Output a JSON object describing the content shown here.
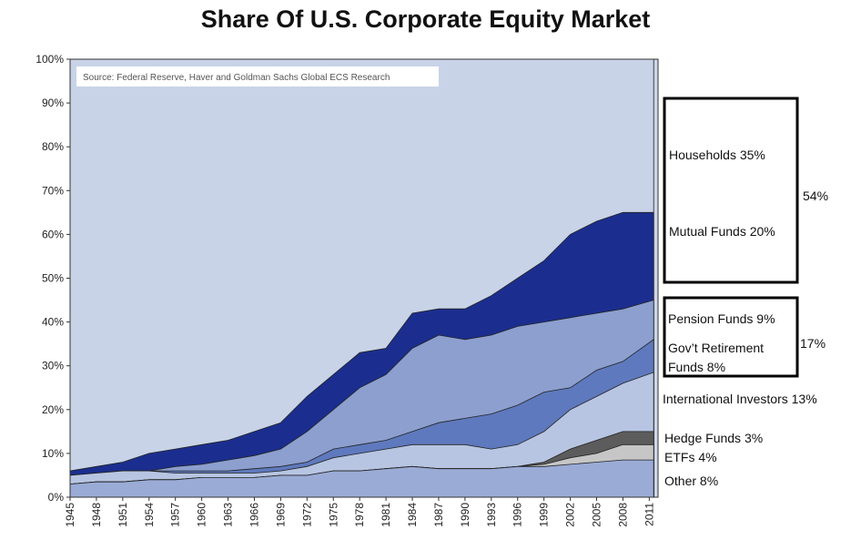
{
  "title": "Share Of U.S. Corporate Equity Market",
  "source_note": "Source: Federal Reserve, Haver and Goldman Sachs Global ECS Research",
  "colors": {
    "background_area": "#cdd7e8",
    "households": "#c8d3e7",
    "mutual_funds": "#1b2e8f",
    "pension_funds": "#8c9fcf",
    "govt_retirement": "#5e79bd",
    "international": "#b7c5e2",
    "hedge_funds": "#5c5c5c",
    "etfs": "#c6c6c6",
    "other": "#9aabd6",
    "outline": "#222222"
  },
  "legend": {
    "group1_total": "54%",
    "group2_total": "17%",
    "households": "Households 35%",
    "mutual_funds": "Mutual Funds 20%",
    "pension_funds": "Pension Funds 9%",
    "govt_retirement_1": "Gov’t Retirement",
    "govt_retirement_2": "Funds 8%",
    "international": "International Investors 13%",
    "hedge_funds": "Hedge Funds 3%",
    "etfs": "ETFs 4%",
    "other": "Other 8%"
  },
  "chart_data": {
    "type": "area",
    "title": "Share Of U.S. Corporate Equity Market",
    "xlabel": "",
    "ylabel": "",
    "ylim": [
      0,
      100
    ],
    "xlim": [
      1945,
      2012
    ],
    "y_ticks": [
      "0%",
      "10%",
      "20%",
      "30%",
      "40%",
      "50%",
      "60%",
      "70%",
      "80%",
      "90%",
      "100%"
    ],
    "x_ticks": [
      "1945",
      "1948",
      "1951",
      "1954",
      "1957",
      "1960",
      "1963",
      "1966",
      "1969",
      "1972",
      "1975",
      "1978",
      "1981",
      "1984",
      "1987",
      "1990",
      "1993",
      "1996",
      "1999",
      "2002",
      "2005",
      "2008",
      "2011"
    ],
    "x": [
      1945,
      1948,
      1951,
      1954,
      1957,
      1960,
      1963,
      1966,
      1969,
      1972,
      1975,
      1978,
      1981,
      1984,
      1987,
      1990,
      1993,
      1996,
      1999,
      2002,
      2005,
      2008,
      2011.5
    ],
    "cumulative_top_boundaries": [
      {
        "name": "Other",
        "values": [
          3,
          3.5,
          3.5,
          4,
          4,
          4.5,
          4.5,
          4.5,
          5,
          5,
          6,
          6,
          6.5,
          7,
          6.5,
          6.5,
          6.5,
          7,
          7,
          7.5,
          8,
          8.5,
          8.5
        ]
      },
      {
        "name": "ETFs",
        "values": [
          3,
          3.5,
          3.5,
          4,
          4,
          4.5,
          4.5,
          4.5,
          5,
          5,
          6,
          6,
          6.5,
          7,
          6.5,
          6.5,
          6.5,
          7,
          7.5,
          9,
          10,
          12,
          12
        ]
      },
      {
        "name": "Hedge Funds",
        "values": [
          3,
          3.5,
          3.5,
          4,
          4,
          4.5,
          4.5,
          4.5,
          5,
          5,
          6,
          6,
          6.5,
          7,
          6.5,
          6.5,
          6.5,
          7,
          8,
          11,
          13,
          15,
          15
        ]
      },
      {
        "name": "International Investors",
        "values": [
          5,
          5.5,
          6,
          6,
          5.5,
          5.5,
          5.5,
          5.5,
          6,
          7,
          9,
          10,
          11,
          12,
          12,
          12,
          11,
          12,
          15,
          20,
          23,
          26,
          28.5
        ]
      },
      {
        "name": "Gov’t Retirement Funds 8%",
        "values": [
          5,
          5.5,
          6,
          6,
          6,
          6,
          6,
          6.5,
          7,
          8,
          11,
          12,
          13,
          15,
          17,
          18,
          19,
          21,
          24,
          25,
          29,
          31,
          36
        ]
      },
      {
        "name": "Pension Funds 9%",
        "values": [
          5,
          5.5,
          6,
          6,
          7,
          7.5,
          8.5,
          9.5,
          11,
          15,
          20,
          25,
          28,
          34,
          37,
          36,
          37,
          39,
          40,
          41,
          42,
          43,
          45
        ]
      },
      {
        "name": "Mutual Funds 20%",
        "values": [
          6,
          7,
          8,
          10,
          11,
          12,
          13,
          15,
          17,
          23,
          28,
          33,
          34,
          42,
          43,
          43,
          46,
          50,
          54,
          60,
          63,
          65,
          65
        ]
      },
      {
        "name": "Households 35%",
        "values": [
          100,
          100,
          100,
          100,
          100,
          100,
          100,
          100,
          100,
          100,
          100,
          100,
          100,
          100,
          100,
          100,
          100,
          100,
          100,
          100,
          100,
          100,
          100
        ]
      }
    ]
  }
}
